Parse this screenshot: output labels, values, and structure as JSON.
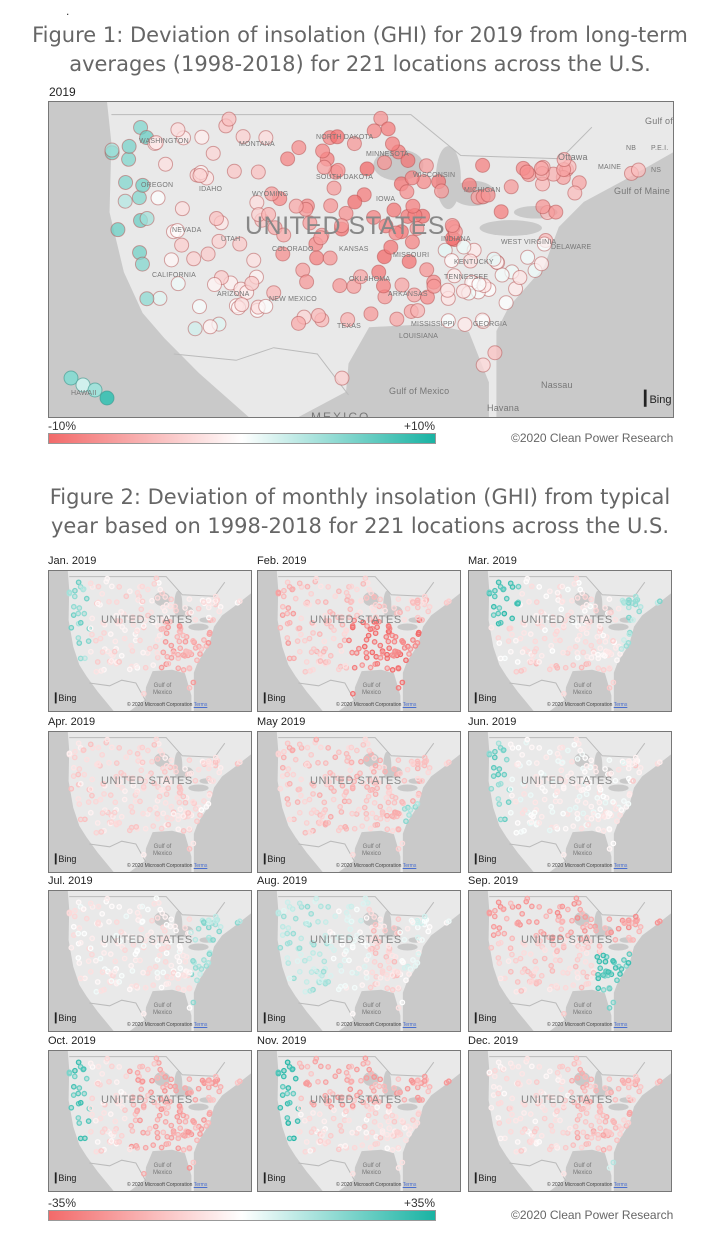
{
  "stray_mark": ".",
  "figure1": {
    "title_line1": "Figure 1: Deviation of insolation (GHI) for 2019 from long-term",
    "title_line2": "averages (1998-2018) for 221 locations across the U.S.",
    "year_label": "2019",
    "map_labels": {
      "washington": "WASHINGTON",
      "oregon": "OREGON",
      "idaho": "IDAHO",
      "montana": "MONTANA",
      "north_dakota": "NORTH DAKOTA",
      "south_dakota": "SOUTH DAKOTA",
      "minnesota": "MINNESOTA",
      "wyoming": "WYOMING",
      "nevada": "NEVADA",
      "utah": "UTAH",
      "colorado": "COLORADO",
      "kansas": "KANSAS",
      "oklahoma": "OKLAHOMA",
      "california": "CALIFORNIA",
      "arizona": "ARIZONA",
      "new_mexico": "NEW MEXICO",
      "texas": "TEXAS",
      "iowa": "IOWA",
      "wisconsin": "WISCONSIN",
      "michigan": "MICHIGAN",
      "missouri": "MISSOURI",
      "indiana": "INDIANA",
      "kentucky": "KENTUCKY",
      "tennessee": "TENNESSEE",
      "arkansas": "ARKANSAS",
      "mississippi": "MISSISSIPPI",
      "louisiana": "LOUISIANA",
      "georgia": "GEORGIA",
      "west_virginia": "WEST VIRGINIA",
      "delaware": "DELAWARE",
      "maine": "MAINE",
      "ottawa": "Ottawa",
      "nb": "NB",
      "pei": "P.E.I.",
      "ns": "NS",
      "gulf_of_maine": "Gulf of Maine",
      "gulf_st_lawrence": "Gulf of St. Lawrence",
      "gulf_of_mexico": "Gulf of Mexico",
      "havana": "Havana",
      "nassau": "Nassau",
      "hawaii": "HAWAII",
      "mexico": "MEXICO",
      "united_states": "UNITED STATES"
    },
    "bing": "Bing",
    "legend": {
      "min_label": "-10%",
      "max_label": "+10%",
      "min": -10,
      "max": 10
    },
    "credit": "©2020 Clean Power Research"
  },
  "figure2": {
    "title_line1": "Figure 2: Deviation of monthly insolation (GHI) from typical",
    "title_line2": "year based on 1998-2018 for 221 locations across the U.S.",
    "months": [
      {
        "label": "Jan. 2019"
      },
      {
        "label": "Feb. 2019"
      },
      {
        "label": "Mar. 2019"
      },
      {
        "label": "Apr. 2019"
      },
      {
        "label": "May 2019"
      },
      {
        "label": "Jun. 2019"
      },
      {
        "label": "Jul. 2019"
      },
      {
        "label": "Aug. 2019"
      },
      {
        "label": "Sep. 2019"
      },
      {
        "label": "Oct. 2019"
      },
      {
        "label": "Nov. 2019"
      },
      {
        "label": "Dec. 2019"
      }
    ],
    "map_text": {
      "united_states": "UNITED STATES",
      "gulf_line1": "Gulf of",
      "gulf_line2": "Mexico",
      "bing": "Bing",
      "copyright": "© 2020 Microsoft Corporation",
      "terms": "Terms"
    },
    "legend": {
      "min_label": "-35%",
      "max_label": "+35%",
      "min": -35,
      "max": 35
    },
    "credit": "©2020 Clean Power Research"
  },
  "colors": {
    "negative": "#f26a6a",
    "neutral": "#ffffff",
    "positive": "#19b3a3",
    "ocean": "#c9c9c9",
    "land": "#e9e9e9"
  }
}
